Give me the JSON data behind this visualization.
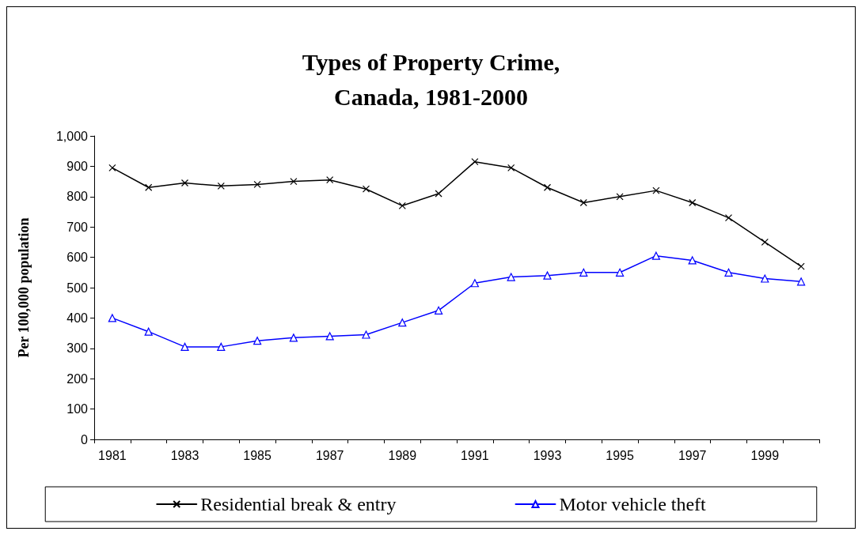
{
  "chart_data": {
    "type": "line",
    "title": "Types of Property Crime,\nCanada, 1981-2000",
    "ylabel": "Per 100,000 population",
    "categories": [
      "1981",
      null,
      "1983",
      null,
      "1985",
      null,
      "1987",
      null,
      "1989",
      null,
      "1991",
      null,
      "1993",
      null,
      "1995",
      null,
      "1997",
      null,
      "1999",
      null
    ],
    "series": [
      {
        "name": "Residential break & entry",
        "color": "#000000",
        "marker": "cross",
        "values": [
          895,
          830,
          845,
          835,
          840,
          850,
          855,
          825,
          770,
          810,
          915,
          895,
          830,
          780,
          800,
          820,
          780,
          730,
          650,
          570
        ]
      },
      {
        "name": "Motor vehicle theft",
        "color": "#0000ff",
        "marker": "triangle",
        "values": [
          400,
          355,
          305,
          305,
          325,
          335,
          340,
          345,
          385,
          425,
          515,
          535,
          540,
          550,
          550,
          605,
          590,
          550,
          530,
          520
        ]
      }
    ],
    "ylim": [
      0,
      1000
    ],
    "yticks": [
      0,
      100,
      200,
      300,
      400,
      500,
      600,
      700,
      800,
      900,
      {
        "value": 1000,
        "label": "1,000"
      }
    ],
    "grid": false,
    "legend": "bottom",
    "line_style": "solid"
  }
}
